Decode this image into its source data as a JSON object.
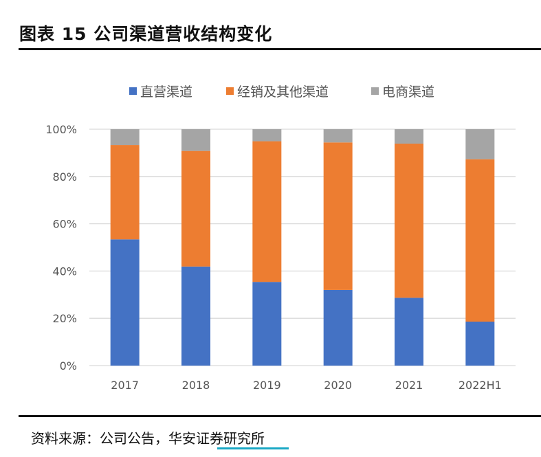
{
  "title": "图表 15  公司渠道营收结构变化",
  "source": {
    "prefix": "资料来源：公司公告，",
    "highlight": "华安证券",
    "suffix": "研究所"
  },
  "chart_data": {
    "type": "bar",
    "stacked": true,
    "title": "",
    "xlabel": "",
    "ylabel": "",
    "ylim": [
      0,
      100
    ],
    "y_unit": "%",
    "y_ticks": [
      "0%",
      "20%",
      "40%",
      "60%",
      "80%",
      "100%"
    ],
    "grid": true,
    "legend_position": "top",
    "categories": [
      "2017",
      "2018",
      "2019",
      "2020",
      "2021",
      "2022H1"
    ],
    "series": [
      {
        "name": "直营渠道",
        "color": "#4472c4",
        "values": [
          53.4,
          41.9,
          35.4,
          32.0,
          28.7,
          18.6
        ]
      },
      {
        "name": "经销及其他渠道",
        "color": "#ed7d31",
        "values": [
          39.9,
          48.9,
          59.5,
          62.4,
          65.2,
          68.7
        ]
      },
      {
        "name": "电商渠道",
        "color": "#a5a5a5",
        "values": [
          6.7,
          9.2,
          5.1,
          5.6,
          6.1,
          12.7
        ]
      }
    ]
  }
}
